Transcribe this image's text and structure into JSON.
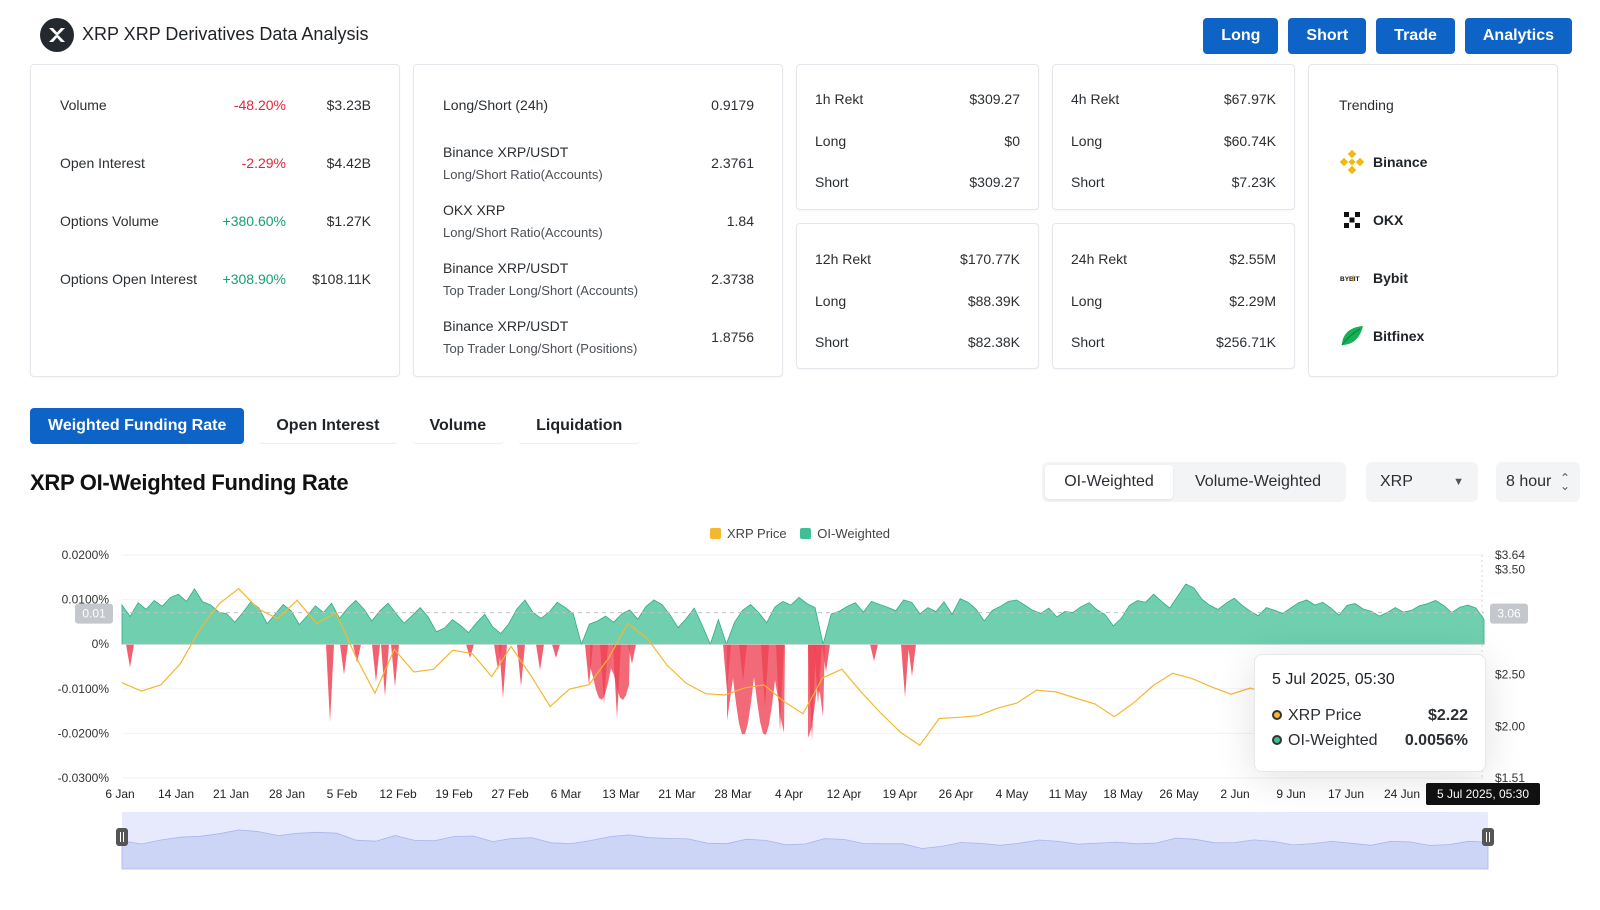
{
  "header": {
    "title": "XRP XRP Derivatives Data Analysis",
    "nav": [
      "Long",
      "Short",
      "Trade",
      "Analytics"
    ]
  },
  "market_card": {
    "rows": [
      {
        "label": "Volume",
        "change": "-48.20%",
        "value": "$3.23B",
        "dir": "down"
      },
      {
        "label": "Open Interest",
        "change": "-2.29%",
        "value": "$4.42B",
        "dir": "down"
      },
      {
        "label": "Options Volume",
        "change": "+380.60%",
        "value": "$1.27K",
        "dir": "up"
      },
      {
        "label": "Options Open Interest",
        "change": "+308.90%",
        "value": "$108.11K",
        "dir": "up"
      }
    ]
  },
  "ratio_card": {
    "rows": [
      {
        "label": "Long/Short (24h)",
        "sub": "",
        "value": "0.9179"
      },
      {
        "label": "Binance XRP/USDT",
        "sub": "Long/Short Ratio(Accounts)",
        "value": "2.3761"
      },
      {
        "label": "OKX XRP",
        "sub": "Long/Short Ratio(Accounts)",
        "value": "1.84"
      },
      {
        "label": "Binance XRP/USDT",
        "sub": "Top Trader Long/Short (Accounts)",
        "value": "2.3738"
      },
      {
        "label": "Binance XRP/USDT",
        "sub": "Top Trader Long/Short (Positions)",
        "value": "1.8756"
      }
    ]
  },
  "rekt": {
    "h1": {
      "title": "1h Rekt",
      "total": "$309.27",
      "long_label": "Long",
      "long": "$0",
      "short_label": "Short",
      "short": "$309.27"
    },
    "h4": {
      "title": "4h Rekt",
      "total": "$67.97K",
      "long_label": "Long",
      "long": "$60.74K",
      "short_label": "Short",
      "short": "$7.23K"
    },
    "h12": {
      "title": "12h Rekt",
      "total": "$170.77K",
      "long_label": "Long",
      "long": "$88.39K",
      "short_label": "Short",
      "short": "$82.38K"
    },
    "h24": {
      "title": "24h Rekt",
      "total": "$2.55M",
      "long_label": "Long",
      "long": "$2.29M",
      "short_label": "Short",
      "short": "$256.71K"
    }
  },
  "trending": {
    "title": "Trending",
    "items": [
      {
        "name": "Binance",
        "icon": "binance-icon"
      },
      {
        "name": "OKX",
        "icon": "okx-icon"
      },
      {
        "name": "Bybit",
        "icon": "bybit-icon"
      },
      {
        "name": "Bitfinex",
        "icon": "bitfinex-icon"
      }
    ]
  },
  "tabs": [
    "Weighted Funding Rate",
    "Open Interest",
    "Volume",
    "Liquidation"
  ],
  "chart_header": {
    "title": "XRP OI-Weighted Funding Rate",
    "weighting": [
      "OI-Weighted",
      "Volume-Weighted"
    ],
    "coin": "XRP",
    "interval": "8 hour"
  },
  "colors": {
    "accent": "#0e63c6",
    "price": "#f5b731",
    "positive": "#3fbf94",
    "negative": "#ef4455"
  },
  "tooltip": {
    "date": "5 Jul 2025, 05:30",
    "price_label": "XRP Price",
    "price": "$2.22",
    "rate_label": "OI-Weighted",
    "rate": "0.0056%"
  },
  "chart_data": {
    "type": "bar",
    "legend": [
      "XRP Price",
      "OI-Weighted"
    ],
    "legend_position": "top",
    "x_ticks": [
      "6 Jan",
      "14 Jan",
      "21 Jan",
      "28 Jan",
      "5 Feb",
      "12 Feb",
      "19 Feb",
      "27 Feb",
      "6 Mar",
      "13 Mar",
      "21 Mar",
      "28 Mar",
      "4 Apr",
      "12 Apr",
      "19 Apr",
      "26 Apr",
      "4 May",
      "11 May",
      "18 May",
      "26 May",
      "2 Jun",
      "9 Jun",
      "17 Jun",
      "24 Jun"
    ],
    "x_cursor_label": "5 Jul 2025, 05:30",
    "y_left_ticks": [
      "0.0200%",
      "0.0100%",
      "0%",
      "-0.0100%",
      "-0.0200%",
      "-0.0300%"
    ],
    "y_left_range": [
      -0.03,
      0.02
    ],
    "y_right_ticks": [
      "$3.64",
      "$3.50",
      "$2.50",
      "$2.00",
      "$1.51"
    ],
    "y_left_marker": "0.01",
    "y_right_marker": "3.06",
    "series": [
      {
        "name": "OI-Weighted",
        "unit": "%",
        "values": [
          0.0088,
          0.0062,
          0.0093,
          0.0078,
          0.0098,
          0.0085,
          0.0105,
          0.0112,
          0.0096,
          0.0124,
          0.0095,
          0.0088,
          0.0072,
          0.0068,
          0.0049,
          0.0071,
          0.0095,
          0.0081,
          0.0046,
          0.0067,
          0.0089,
          0.0075,
          0.0044,
          0.0064,
          0.0086,
          0.0071,
          0.0092,
          0.0058,
          0.0081,
          0.0098,
          0.0079,
          0.0052,
          0.0075,
          0.0092,
          0.0069,
          0.0047,
          0.0064,
          0.0082,
          0.0061,
          0.0028,
          0.0036,
          0.0055,
          0.0042,
          0.0026,
          0.0048,
          0.0067,
          0.0039,
          0.0024,
          0.0046,
          0.0079,
          0.0099,
          0.0071,
          0.0058,
          0.0072,
          0.0094,
          0.0082,
          0.0068,
          -0.0035,
          0.0045,
          0.0052,
          0.0063,
          0.0049,
          0.0068,
          0.0077,
          0.0056,
          0.0084,
          0.0099,
          0.0089,
          0.0066,
          0.0037,
          0.0057,
          0.0081,
          0.0042,
          -0.0028,
          0.0055,
          -0.0045,
          0.0049,
          0.0076,
          0.0089,
          0.0071,
          0.0048,
          0.0083,
          0.0096,
          0.0088,
          0.0105,
          0.0091,
          0.0082,
          -0.0012,
          0.0068,
          0.0074,
          0.0085,
          0.0093,
          0.0072,
          0.0096,
          0.0089,
          0.0083,
          0.0075,
          0.0099,
          0.0094,
          0.0068,
          0.0082,
          0.0073,
          0.0095,
          0.0067,
          0.0102,
          0.0094,
          0.0078,
          0.0052,
          0.0076,
          0.0085,
          0.0096,
          0.0099,
          0.0088,
          0.0076,
          0.0069,
          0.0081,
          0.0061,
          0.0073,
          0.0071,
          0.0084,
          0.0093,
          0.0077,
          0.0066,
          0.0041,
          0.0058,
          0.0087,
          0.0098,
          0.0094,
          0.0112,
          0.0096,
          0.0081,
          0.0108,
          0.0135,
          0.0126,
          0.0101,
          0.0087,
          0.0078,
          0.0092,
          0.0103,
          0.0087,
          0.0074,
          0.0064,
          0.0082,
          0.0076,
          0.0069,
          0.0081,
          0.0093,
          0.0099,
          0.0088,
          0.0094,
          0.0081,
          0.0065,
          0.0087,
          0.0091,
          0.0079,
          0.0074,
          0.0063,
          0.0071,
          0.0082,
          0.0072,
          0.0076,
          0.0086,
          0.0091,
          0.0098,
          0.0087,
          0.0071,
          0.0083,
          0.0088,
          0.0081,
          0.0056
        ],
        "negative_spikes": [
          -0.0052,
          -0.0175,
          -0.0068,
          -0.0042,
          -0.0121,
          -0.0095,
          -0.0058,
          -0.0031,
          -0.0092,
          -0.0134,
          -0.0167,
          -0.0044,
          -0.0105,
          -0.0082,
          -0.0141,
          -0.0196,
          -0.0215,
          -0.0134,
          -0.0062,
          -0.0038,
          -0.0119,
          -0.0072,
          -0.0058,
          -0.0031,
          -0.0096,
          -0.0118,
          -0.0085
        ]
      },
      {
        "name": "XRP Price",
        "unit": "$",
        "values": [
          2.42,
          2.31,
          2.44,
          2.58,
          2.92,
          3.21,
          3.28,
          3.14,
          3.05,
          3.17,
          3.02,
          3.08,
          2.65,
          2.36,
          2.71,
          2.52,
          2.58,
          2.69,
          2.72,
          2.49,
          2.73,
          2.53,
          2.18,
          2.34,
          2.44,
          2.62,
          2.99,
          2.87,
          2.55,
          2.44,
          2.32,
          2.27,
          2.41,
          2.38,
          2.23,
          2.16,
          2.43,
          2.56,
          2.35,
          2.09,
          1.98,
          1.82,
          2.05,
          2.13,
          2.08,
          2.17,
          2.26,
          2.31,
          2.35,
          2.29,
          2.18,
          2.13,
          2.22,
          2.37,
          2.55,
          2.43,
          2.38,
          2.34,
          2.33,
          2.32,
          2.23,
          2.16,
          2.18,
          2.24,
          2.18,
          2.27,
          2.18,
          2.13,
          2.17,
          2.21,
          2.22
        ]
      }
    ]
  }
}
